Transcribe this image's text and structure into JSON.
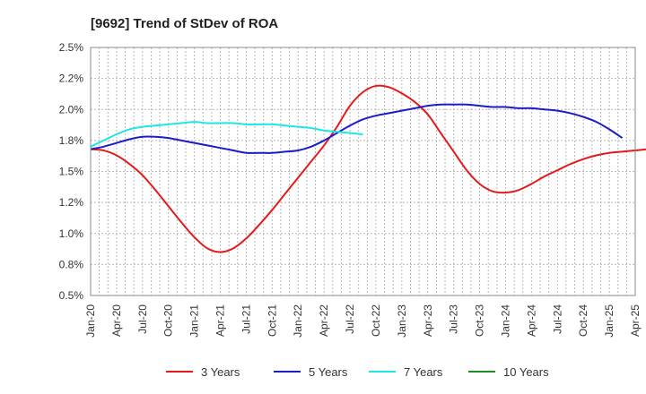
{
  "chart_data": {
    "type": "line",
    "title": "[9692]  Trend of StDev of ROA",
    "xlabel": "",
    "ylabel": "",
    "x_tick_labels": [
      "Jan-20",
      "Apr-20",
      "Jul-20",
      "Oct-20",
      "Jan-21",
      "Apr-21",
      "Jul-21",
      "Oct-21",
      "Jan-22",
      "Apr-22",
      "Jul-22",
      "Oct-22",
      "Jan-23",
      "Apr-23",
      "Jul-23",
      "Oct-23",
      "Jan-24",
      "Apr-24",
      "Jul-24",
      "Oct-24",
      "Jan-25",
      "Apr-25"
    ],
    "y_tick_labels": [
      "0.5%",
      "0.8%",
      "1.0%",
      "1.2%",
      "1.5%",
      "1.8%",
      "2.0%",
      "2.2%",
      "2.5%"
    ],
    "ylim": [
      0.5,
      2.5
    ],
    "grid": true,
    "legend_position": "bottom",
    "series": [
      {
        "name": "3 Years",
        "color": "#e31a1c",
        "values": [
          1.68,
          1.67,
          1.63,
          1.56,
          1.47,
          1.35,
          1.22,
          1.09,
          0.97,
          0.88,
          0.85,
          0.88,
          0.96,
          1.07,
          1.19,
          1.32,
          1.45,
          1.58,
          1.71,
          1.86,
          2.03,
          2.14,
          2.19,
          2.18,
          2.13,
          2.06,
          1.96,
          1.81,
          1.66,
          1.51,
          1.4,
          1.34,
          1.33,
          1.35,
          1.4,
          1.46,
          1.51,
          1.56,
          1.6,
          1.63,
          1.65,
          1.66,
          1.67,
          1.68
        ]
      },
      {
        "name": "5 Years",
        "color": "#1c1cc8",
        "values": [
          1.68,
          1.7,
          1.73,
          1.76,
          1.78,
          1.78,
          1.77,
          1.75,
          1.73,
          1.71,
          1.69,
          1.67,
          1.65,
          1.65,
          1.65,
          1.66,
          1.67,
          1.7,
          1.75,
          1.81,
          1.87,
          1.92,
          1.95,
          1.97,
          1.99,
          2.01,
          2.03,
          2.04,
          2.04,
          2.04,
          2.03,
          2.02,
          2.02,
          2.01,
          2.01,
          2.0,
          1.99,
          1.97,
          1.94,
          1.9,
          1.84,
          1.77
        ]
      },
      {
        "name": "7 Years",
        "color": "#1ee6e6",
        "values": [
          1.7,
          1.75,
          1.8,
          1.84,
          1.86,
          1.87,
          1.88,
          1.89,
          1.9,
          1.89,
          1.89,
          1.89,
          1.88,
          1.88,
          1.88,
          1.87,
          1.86,
          1.85,
          1.83,
          1.82,
          1.81,
          1.8
        ]
      },
      {
        "name": "10 Years",
        "color": "#228b22",
        "values": []
      }
    ]
  }
}
